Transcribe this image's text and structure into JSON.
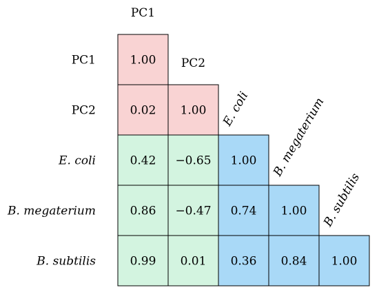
{
  "chart_data": {
    "type": "heatmap",
    "title": "",
    "variables": [
      "PC1",
      "PC2",
      "E. coli",
      "B. megaterium",
      "B. subtilis"
    ],
    "italic_variables": [
      false,
      false,
      true,
      true,
      true
    ],
    "matrix": [
      [
        "1.00",
        null,
        null,
        null,
        null
      ],
      [
        "0.02",
        "1.00",
        null,
        null,
        null
      ],
      [
        "0.42",
        "−0.65",
        "1.00",
        null,
        null
      ],
      [
        "0.86",
        "−0.47",
        "0.74",
        "1.00",
        null
      ],
      [
        "0.99",
        "0.01",
        "0.36",
        "0.84",
        "1.00"
      ]
    ],
    "emphasized_cells": [
      [
        2,
        1
      ],
      [
        3,
        1
      ]
    ],
    "colors": {
      "pc_block": "#f9d3d3",
      "cross_block": "#d3f4e0",
      "species_block": "#a9d9f7",
      "border": "#000000"
    },
    "groups": {
      "pc": [
        0,
        1
      ],
      "species": [
        2,
        3,
        4
      ]
    }
  }
}
